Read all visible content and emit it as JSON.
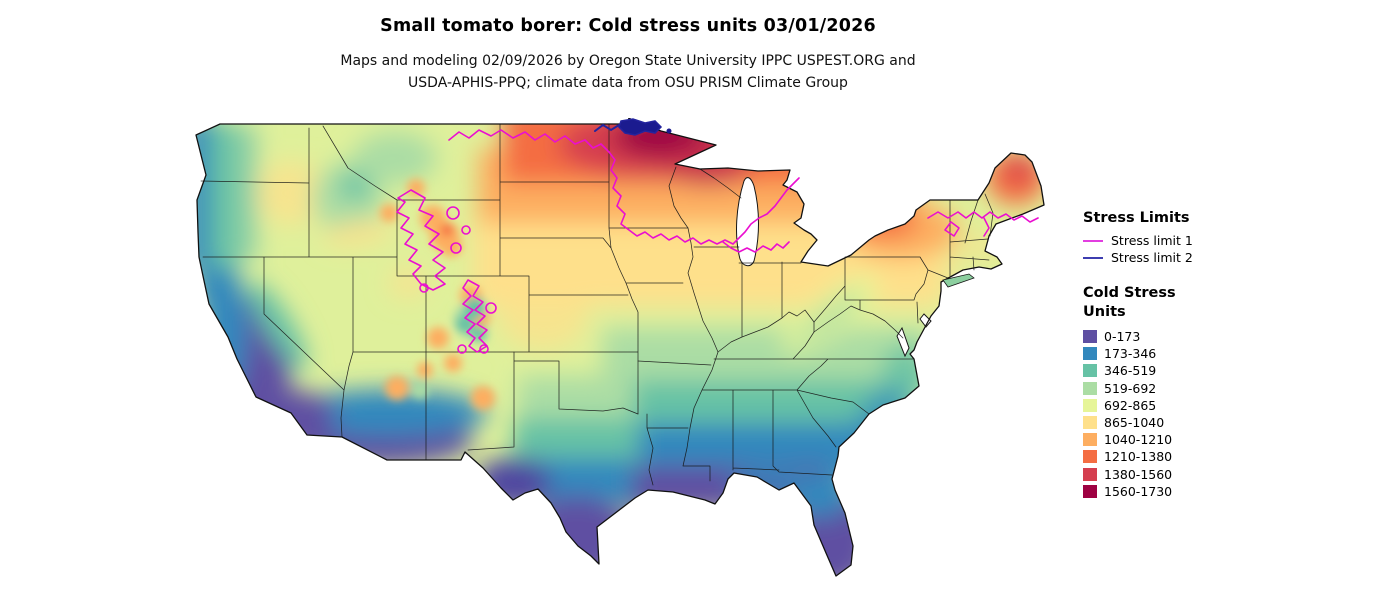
{
  "header": {
    "title": "Small tomato borer: Cold stress units 03/01/2026",
    "subtitle_line1": "Maps and modeling 02/09/2026 by Oregon State University IPPC USPEST.ORG and",
    "subtitle_line2": "USDA-APHIS-PPQ; climate data from OSU PRISM Climate Group"
  },
  "legends": {
    "stress_limits": {
      "title": "Stress Limits",
      "items": [
        {
          "label": "Stress limit 1",
          "color": "#e23ee0"
        },
        {
          "label": "Stress limit 2",
          "color": "#3d3db0"
        }
      ]
    },
    "cold_stress": {
      "title_line1": "Cold Stress",
      "title_line2": "Units",
      "bins": [
        {
          "label": "0-173",
          "color": "#5e4fa2"
        },
        {
          "label": "173-346",
          "color": "#3288bd"
        },
        {
          "label": "346-519",
          "color": "#66c2a5"
        },
        {
          "label": "519-692",
          "color": "#abdda4"
        },
        {
          "label": "692-865",
          "color": "#e6f598"
        },
        {
          "label": "865-1040",
          "color": "#fee08b"
        },
        {
          "label": "1040-1210",
          "color": "#fdae61"
        },
        {
          "label": "1210-1380",
          "color": "#f46d43"
        },
        {
          "label": "1380-1560",
          "color": "#d53e4f"
        },
        {
          "label": "1560-1730",
          "color": "#9e0142"
        }
      ]
    }
  },
  "chart_data": {
    "type": "heatmap",
    "title": "Small tomato borer: Cold stress units 03/01/2026",
    "legend_bins": [
      "0-173",
      "173-346",
      "346-519",
      "519-692",
      "692-865",
      "865-1040",
      "1040-1210",
      "1210-1380",
      "1380-1560",
      "1560-1730"
    ],
    "bin_colors": [
      "#5e4fa2",
      "#3288bd",
      "#66c2a5",
      "#abdda4",
      "#e6f598",
      "#fee08b",
      "#fdae61",
      "#f46d43",
      "#d53e4f",
      "#9e0142"
    ],
    "contours": [
      {
        "name": "Stress limit 1",
        "color": "#ea0fd0"
      },
      {
        "name": "Stress limit 2",
        "color": "#24249e"
      }
    ]
  }
}
